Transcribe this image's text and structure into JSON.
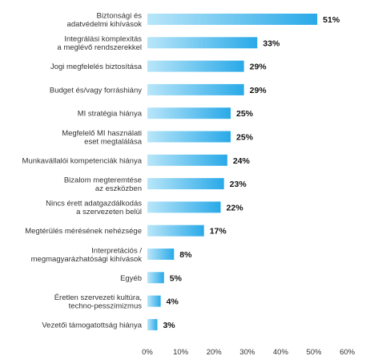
{
  "chart_data": {
    "type": "bar",
    "orientation": "horizontal",
    "categories": [
      [
        "Biztonsági és",
        "adatvédelmi kihívások"
      ],
      [
        "Integrálási komplexitás",
        "a meglévő  rendszerekkel"
      ],
      [
        "Jogi megfelelés biztosítása"
      ],
      [
        "Budget és/vagy forráshiány"
      ],
      [
        "MI stratégia hiánya"
      ],
      [
        "Megfelelő MI használati",
        "eset megtalálása"
      ],
      [
        "Munkavállalói kompetenciák hiánya"
      ],
      [
        "Bizalom megteremtése",
        "az eszközben"
      ],
      [
        "Nincs érett adatgazdálkodás",
        "a szervezeten belül"
      ],
      [
        "Megtérülés mérésének nehézsége"
      ],
      [
        "Interpretációs /",
        "megmagyarázhatósági kihívások"
      ],
      [
        "Egyéb"
      ],
      [
        "Éretlen szervezeti kultúra,",
        "techno-pesszimizmus"
      ],
      [
        "Vezetői támogatottság hiánya"
      ]
    ],
    "values": [
      51,
      33,
      29,
      29,
      25,
      25,
      24,
      23,
      22,
      17,
      8,
      5,
      4,
      3
    ],
    "value_labels": [
      "51%",
      "33%",
      "29%",
      "29%",
      "25%",
      "25%",
      "24%",
      "23%",
      "22%",
      "17%",
      "8%",
      "5%",
      "4%",
      "3%"
    ],
    "xlim": [
      0,
      60
    ],
    "xticks": [
      0,
      10,
      20,
      30,
      40,
      50,
      60
    ],
    "xtick_labels": [
      "0%",
      "10%",
      "20%",
      "30%",
      "40%",
      "50%",
      "60%"
    ],
    "grid": false,
    "colors": {
      "bar_start": "#b9e6f9",
      "bar_end": "#29a9e8",
      "text": "#333333",
      "value_text": "#111111"
    }
  }
}
